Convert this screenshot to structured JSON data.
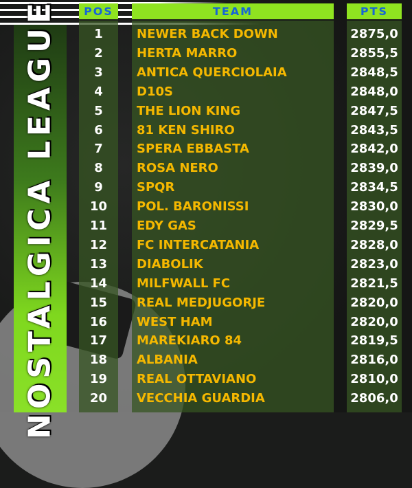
{
  "title": "NOSTALGICA LEAGUE",
  "headers": {
    "pos": "POS",
    "team": "TEAM",
    "pts": "PTS"
  },
  "colors": {
    "header_bg": "#8fe320",
    "header_text": "#1565d8",
    "team_text": "#f5b800"
  },
  "rows": [
    {
      "pos": "1",
      "team": "NEWER BACK DOWN",
      "pts": "2875,0"
    },
    {
      "pos": "2",
      "team": "HERTA MARRO",
      "pts": "2855,5"
    },
    {
      "pos": "3",
      "team": "ANTICA QUERCIOLAIA",
      "pts": "2848,5"
    },
    {
      "pos": "4",
      "team": "D10S",
      "pts": "2848,0"
    },
    {
      "pos": "5",
      "team": "THE LION KING",
      "pts": "2847,5"
    },
    {
      "pos": "6",
      "team": "81 KEN SHIRO",
      "pts": "2843,5"
    },
    {
      "pos": "7",
      "team": "SPERA EBBASTA",
      "pts": "2842,0"
    },
    {
      "pos": "8",
      "team": "ROSA NERO",
      "pts": "2839,0"
    },
    {
      "pos": "9",
      "team": "SPQR",
      "pts": "2834,5"
    },
    {
      "pos": "10",
      "team": "POL. BARONISSI",
      "pts": "2830,0"
    },
    {
      "pos": "11",
      "team": "EDY GAS",
      "pts": "2829,5"
    },
    {
      "pos": "12",
      "team": "FC INTERCATANIA",
      "pts": "2828,0"
    },
    {
      "pos": "13",
      "team": "DIABOLIK",
      "pts": "2823,0"
    },
    {
      "pos": "14",
      "team": "MILFWALL FC",
      "pts": "2821,5"
    },
    {
      "pos": "15",
      "team": "REAL MEDJUGORJE",
      "pts": "2820,0"
    },
    {
      "pos": "16",
      "team": "WEST HAM",
      "pts": "2820,0"
    },
    {
      "pos": "17",
      "team": "MAREKIARO 84",
      "pts": "2819,5"
    },
    {
      "pos": "18",
      "team": "ALBANIA",
      "pts": "2816,0"
    },
    {
      "pos": "19",
      "team": "REAL OTTAVIANO",
      "pts": "2810,0"
    },
    {
      "pos": "20",
      "team": "VECCHIA GUARDIA",
      "pts": "2806,0"
    }
  ]
}
